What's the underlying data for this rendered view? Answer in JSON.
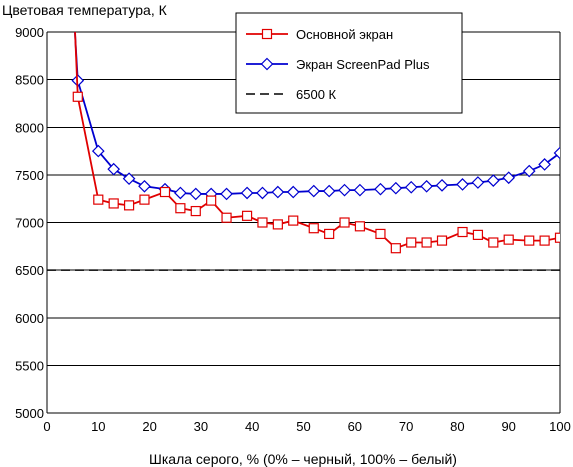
{
  "chart_data": {
    "type": "line",
    "ylabel": "Цветовая температура, К",
    "xlabel": "Шкала серого, % (0% – черный, 100% – белый)",
    "xlim": [
      0,
      100
    ],
    "ylim": [
      5000,
      9000
    ],
    "x_ticks": [
      "0",
      "10",
      "20",
      "30",
      "40",
      "50",
      "60",
      "70",
      "80",
      "90",
      "100"
    ],
    "y_ticks": [
      "5000",
      "5500",
      "6000",
      "6500",
      "7000",
      "7500",
      "8000",
      "8500",
      "9000"
    ],
    "grid": "horizontal",
    "legend_position": "top-right",
    "series": [
      {
        "name": "Основной экран",
        "color": "#e00000",
        "marker": "square",
        "x": [
          5,
          6,
          10,
          13,
          16,
          19,
          23,
          26,
          29,
          32,
          35,
          39,
          42,
          45,
          48,
          52,
          55,
          58,
          61,
          65,
          68,
          71,
          74,
          77,
          81,
          84,
          87,
          90,
          94,
          97,
          100
        ],
        "y": [
          9600,
          8320,
          7240,
          7200,
          7180,
          7240,
          7320,
          7150,
          7120,
          7230,
          7050,
          7070,
          7000,
          6980,
          7020,
          6940,
          6880,
          7000,
          6960,
          6880,
          6730,
          6790,
          6790,
          6810,
          6900,
          6870,
          6790,
          6820,
          6810,
          6810,
          6840
        ]
      },
      {
        "name": "Экран ScreenPad Plus",
        "color": "#0000d0",
        "marker": "diamond",
        "x": [
          5,
          6,
          10,
          13,
          16,
          19,
          23,
          26,
          29,
          32,
          35,
          39,
          42,
          45,
          48,
          52,
          55,
          58,
          61,
          65,
          68,
          71,
          74,
          77,
          81,
          84,
          87,
          90,
          94,
          97,
          100
        ],
        "y": [
          9400,
          8490,
          7750,
          7560,
          7460,
          7380,
          7350,
          7310,
          7300,
          7300,
          7300,
          7310,
          7310,
          7320,
          7320,
          7330,
          7330,
          7340,
          7340,
          7350,
          7360,
          7370,
          7380,
          7390,
          7400,
          7420,
          7440,
          7470,
          7540,
          7610,
          7730
        ]
      },
      {
        "name": "6500 К",
        "color": "#000000",
        "dashed": true,
        "x": [
          0,
          100
        ],
        "y": [
          6500,
          6500
        ]
      }
    ]
  }
}
